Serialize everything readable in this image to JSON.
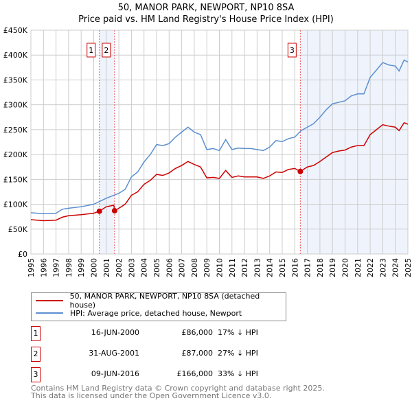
{
  "chart_data": {
    "type": "line",
    "title": "50, MANOR PARK, NEWPORT, NP10 8SA",
    "subtitle": "Price paid vs. HM Land Registry's House Price Index (HPI)",
    "xlim": [
      1995,
      2025
    ],
    "ylim": [
      0,
      450000
    ],
    "y_ticks": [
      {
        "v": 0,
        "l": "£0"
      },
      {
        "v": 50000,
        "l": "£50K"
      },
      {
        "v": 100000,
        "l": "£100K"
      },
      {
        "v": 150000,
        "l": "£150K"
      },
      {
        "v": 200000,
        "l": "£200K"
      },
      {
        "v": 250000,
        "l": "£250K"
      },
      {
        "v": 300000,
        "l": "£300K"
      },
      {
        "v": 350000,
        "l": "£350K"
      },
      {
        "v": 400000,
        "l": "£400K"
      },
      {
        "v": 450000,
        "l": "£450K"
      }
    ],
    "x_ticks": [
      "1995",
      "1996",
      "1997",
      "1998",
      "1999",
      "2000",
      "2001",
      "2002",
      "2003",
      "2004",
      "2005",
      "2006",
      "2007",
      "2008",
      "2009",
      "2010",
      "2011",
      "2012",
      "2013",
      "2014",
      "2015",
      "2016",
      "2017",
      "2018",
      "2019",
      "2020",
      "2021",
      "2022",
      "2023",
      "2024",
      "2025"
    ],
    "grid": true,
    "series": [
      {
        "name": "50, MANOR PARK, NEWPORT, NP10 8SA (detached house)",
        "color": "#cc0000",
        "x": [
          1995,
          1996,
          1997,
          1997.5,
          1998,
          1999,
          2000,
          2000.45,
          2001,
          2001.6,
          2001.66,
          2002,
          2002.5,
          2003,
          2003.5,
          2004,
          2004.5,
          2005,
          2005.5,
          2006,
          2006.5,
          2007,
          2007.5,
          2008,
          2008.5,
          2009,
          2009.5,
          2010,
          2010.5,
          2011,
          2011.5,
          2012,
          2012.5,
          2013,
          2013.5,
          2014,
          2014.5,
          2015,
          2015.5,
          2016,
          2016.44,
          2017,
          2017.5,
          2018,
          2018.5,
          2019,
          2019.5,
          2020,
          2020.5,
          2021,
          2021.5,
          2022,
          2022.5,
          2023,
          2023.5,
          2024,
          2024.3,
          2024.7,
          2025
        ],
        "y": [
          69,
          67,
          68,
          74,
          77,
          79,
          82,
          86,
          95,
          98,
          87,
          92,
          100,
          118,
          125,
          140,
          148,
          160,
          158,
          163,
          172,
          178,
          186,
          180,
          175,
          153,
          154,
          152,
          168,
          154,
          157,
          155,
          155,
          155,
          152,
          157,
          165,
          164,
          170,
          172,
          166,
          175,
          178,
          186,
          195,
          204,
          207,
          209,
          215,
          218,
          218,
          240,
          250,
          260,
          257,
          255,
          248,
          264,
          261
        ]
      },
      {
        "name": "HPI: Average price, detached house, Newport",
        "color": "#5b8fd0",
        "x": [
          1995,
          1996,
          1997,
          1997.5,
          1998,
          1999,
          2000,
          2000.5,
          2001,
          2002,
          2002.5,
          2003,
          2003.5,
          2004,
          2004.5,
          2005,
          2005.5,
          2006,
          2006.5,
          2007,
          2007.5,
          2008,
          2008.5,
          2009,
          2009.5,
          2010,
          2010.5,
          2011,
          2011.5,
          2012,
          2012.5,
          2013,
          2013.5,
          2014,
          2014.5,
          2015,
          2015.5,
          2016,
          2016.5,
          2017,
          2017.5,
          2018,
          2018.5,
          2019,
          2019.5,
          2020,
          2020.5,
          2021,
          2021.5,
          2022,
          2022.5,
          2023,
          2023.5,
          2024,
          2024.3,
          2024.7,
          2025
        ],
        "y": [
          83,
          81,
          82,
          90,
          92,
          95,
          100,
          106,
          112,
          122,
          130,
          155,
          165,
          185,
          200,
          220,
          218,
          222,
          235,
          245,
          255,
          245,
          240,
          210,
          212,
          208,
          230,
          210,
          213,
          212,
          212,
          210,
          208,
          215,
          228,
          226,
          232,
          235,
          248,
          255,
          262,
          275,
          290,
          302,
          305,
          308,
          318,
          322,
          322,
          355,
          370,
          385,
          380,
          378,
          368,
          390,
          386
        ]
      }
    ],
    "y_unit": "thousand GBP",
    "sales": [
      {
        "n": "1",
        "x": 2000.45,
        "y": 86,
        "date": "16-JUN-2000",
        "price": "£86,000",
        "hpi": "17% ↓ HPI"
      },
      {
        "n": "2",
        "x": 2001.66,
        "y": 87,
        "date": "31-AUG-2001",
        "price": "£87,000",
        "hpi": "27% ↓ HPI"
      },
      {
        "n": "3",
        "x": 2016.44,
        "y": 166,
        "date": "09-JUN-2016",
        "price": "£166,000",
        "hpi": "33% ↓ HPI"
      }
    ],
    "shaded": [
      [
        2000.45,
        2001.66
      ],
      [
        2016.44,
        2025
      ]
    ]
  },
  "footer": {
    "line1": "Contains HM Land Registry data © Crown copyright and database right 2025.",
    "line2": "This data is licensed under the Open Government Licence v3.0."
  }
}
